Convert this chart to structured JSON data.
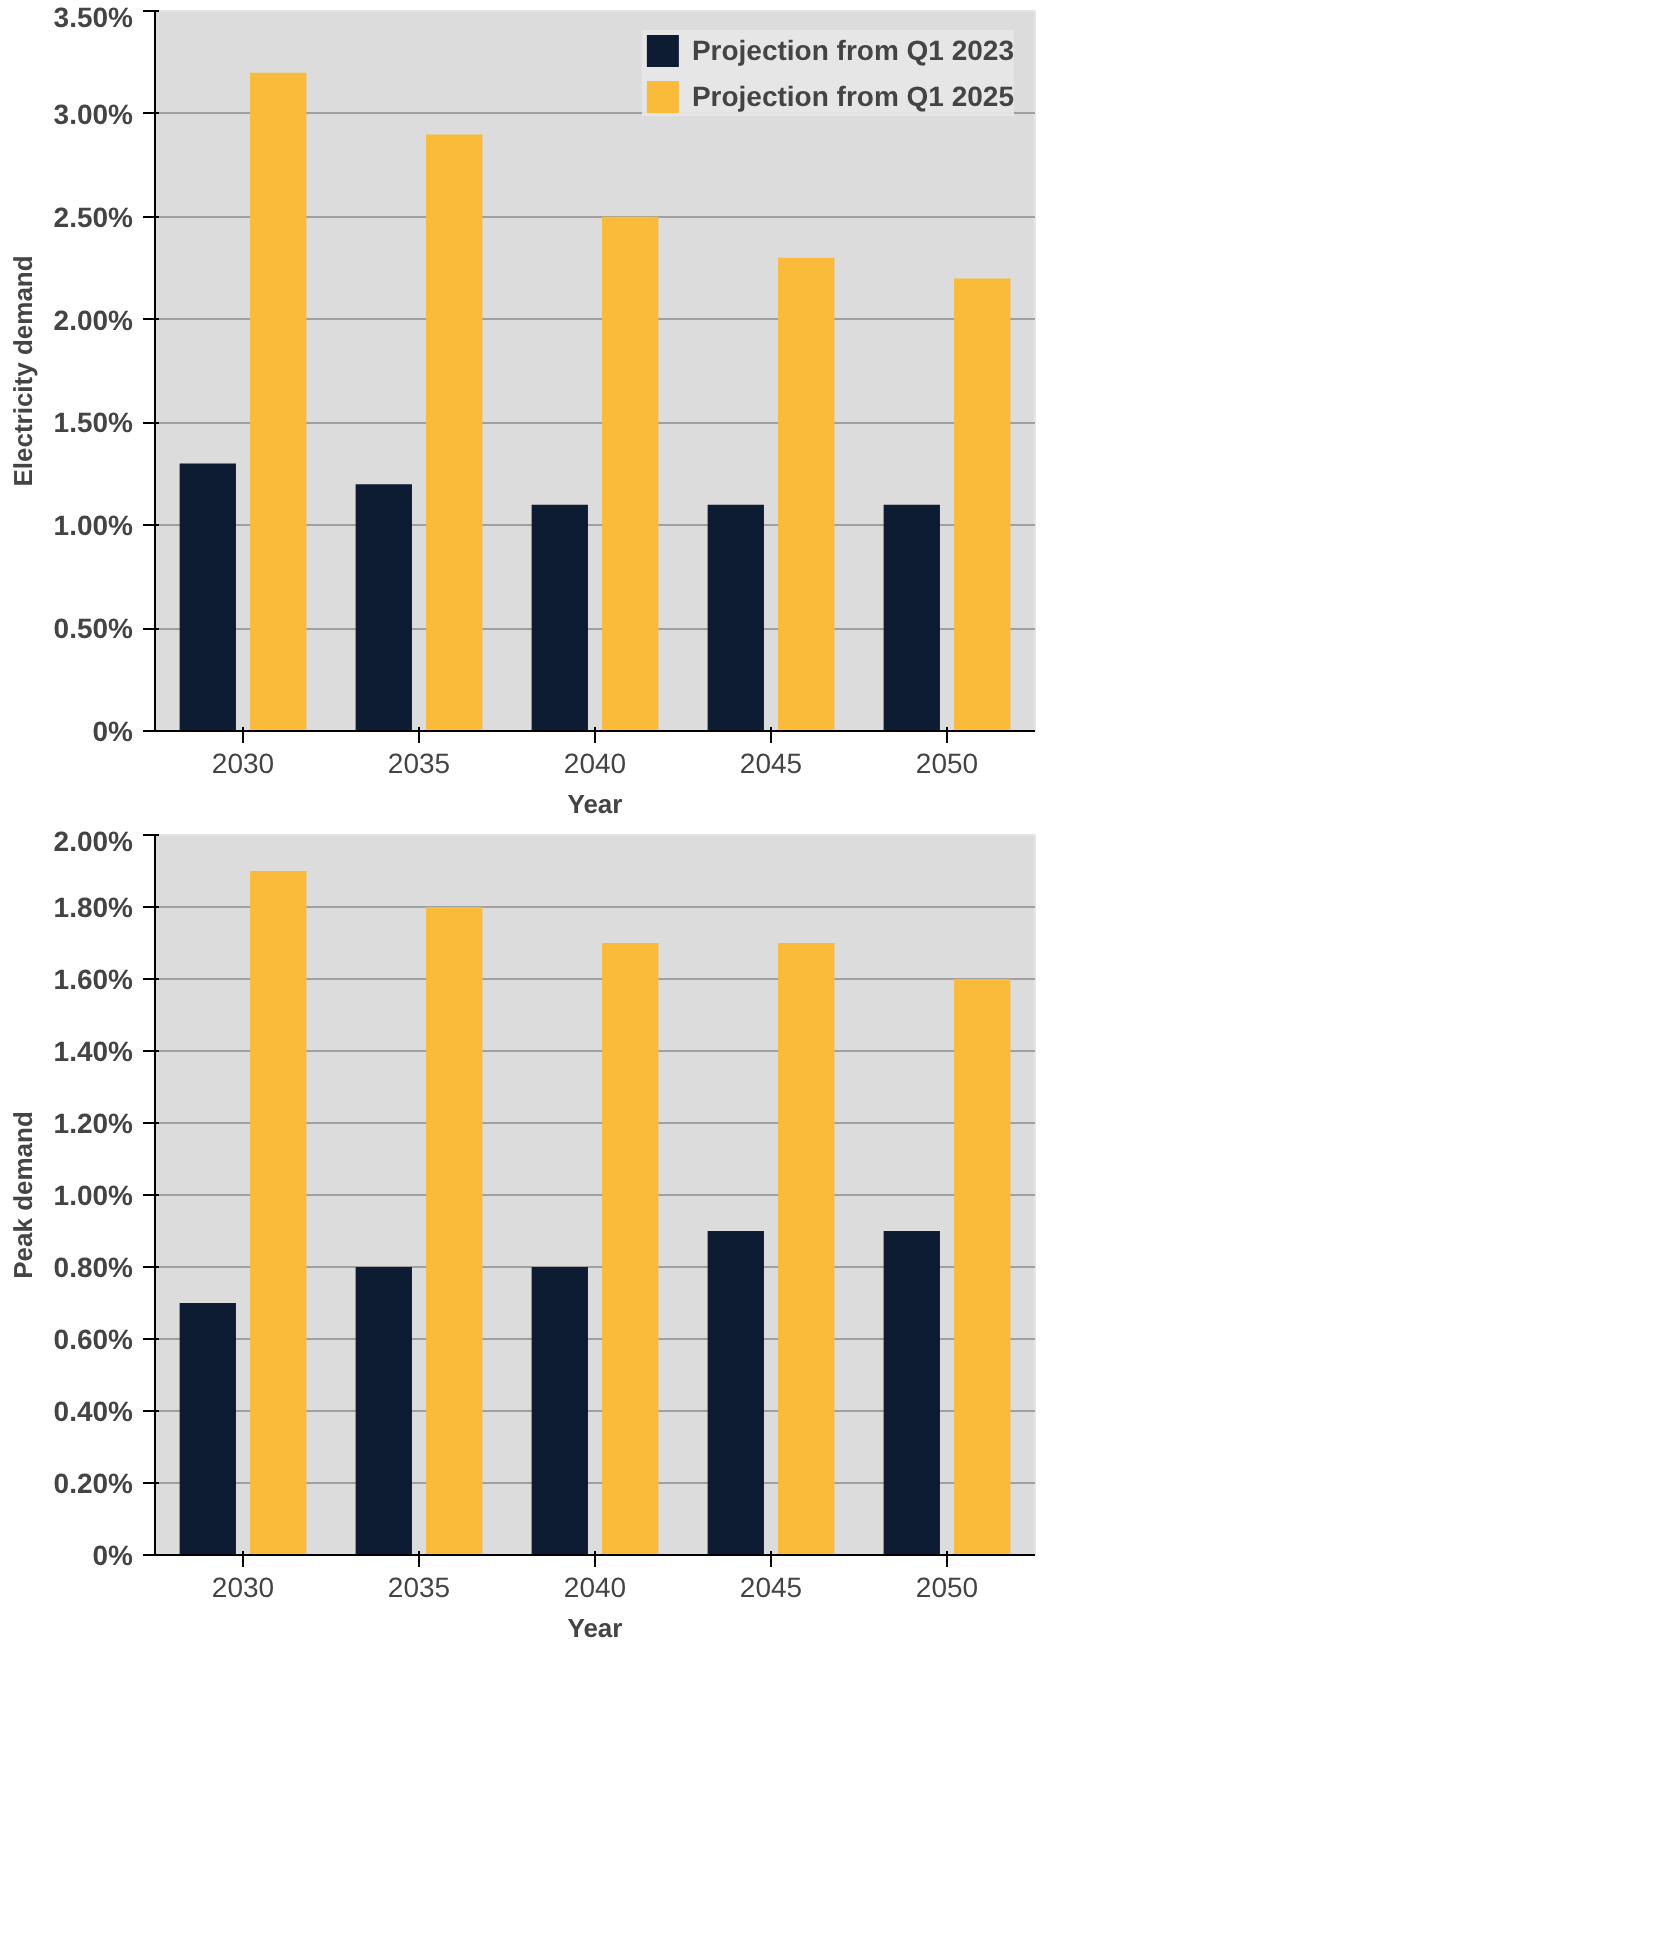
{
  "chart_data": [
    {
      "type": "bar",
      "ylabel": "Electricity demand",
      "xlabel": "Year",
      "categories": [
        "2030",
        "2035",
        "2040",
        "2045",
        "2050"
      ],
      "series": [
        {
          "name": "Projection from Q1 2023",
          "color": "#0d1b33",
          "values": [
            1.3,
            1.2,
            1.1,
            1.1,
            1.1
          ]
        },
        {
          "name": "Projection from Q1 2025",
          "color": "#fbbb3a",
          "values": [
            3.2,
            2.9,
            2.5,
            2.3,
            2.2
          ]
        }
      ],
      "ylim": [
        0,
        3.5
      ],
      "yticks": [
        {
          "value": 0,
          "label": "0%"
        },
        {
          "value": 0.5,
          "label": "0.50%"
        },
        {
          "value": 1,
          "label": "1.00%"
        },
        {
          "value": 1.5,
          "label": "1.50%"
        },
        {
          "value": 2,
          "label": "2.00%"
        },
        {
          "value": 2.5,
          "label": "2.50%"
        },
        {
          "value": 3,
          "label": "3.00%"
        },
        {
          "value": 3.5,
          "label": "3.50%"
        }
      ],
      "grid": "y",
      "legend": "top right"
    },
    {
      "type": "bar",
      "ylabel": "Peak demand",
      "xlabel": "Year",
      "categories": [
        "2030",
        "2035",
        "2040",
        "2045",
        "2050"
      ],
      "series": [
        {
          "color": "#0d1b33",
          "values": [
            0.7,
            0.8,
            0.8,
            0.9,
            0.9
          ]
        },
        {
          "color": "#fbbb3a",
          "values": [
            1.9,
            1.8,
            1.7,
            1.7,
            1.6
          ]
        }
      ],
      "ylim": [
        0,
        2
      ],
      "yticks": [
        {
          "value": 0,
          "label": "0%"
        },
        {
          "value": 0.2,
          "label": "0.20%"
        },
        {
          "value": 0.4,
          "label": "0.40%"
        },
        {
          "value": 0.6,
          "label": "0.60%"
        },
        {
          "value": 0.8,
          "label": "0.80%"
        },
        {
          "value": 1,
          "label": "1.00%"
        },
        {
          "value": 1.2,
          "label": "1.20%"
        },
        {
          "value": 1.4,
          "label": "1.40%"
        },
        {
          "value": 1.6,
          "label": "1.60%"
        },
        {
          "value": 1.8,
          "label": "1.80%"
        },
        {
          "value": 2,
          "label": "2.00%"
        }
      ],
      "grid": "y"
    }
  ]
}
